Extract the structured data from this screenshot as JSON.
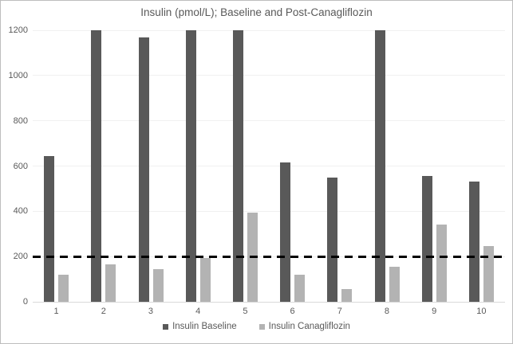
{
  "chart_data": {
    "type": "bar",
    "title": "Insulin (pmol/L); Baseline and Post-Canagliflozin",
    "categories": [
      "1",
      "2",
      "3",
      "4",
      "5",
      "6",
      "7",
      "8",
      "9",
      "10"
    ],
    "series": [
      {
        "name": "Insulin Baseline",
        "color": "#595959",
        "values": [
          645,
          1200,
          1170,
          1200,
          1200,
          615,
          550,
          1200,
          555,
          530
        ]
      },
      {
        "name": "Insulin Canagliflozin",
        "color": "#b3b3b3",
        "values": [
          120,
          165,
          145,
          195,
          395,
          120,
          55,
          155,
          340,
          245
        ]
      }
    ],
    "reference_line": {
      "value": 200,
      "style": "dashed",
      "color": "#000000"
    },
    "y_axis": {
      "min": 0,
      "max": 1200,
      "tick_interval": 200,
      "tick_labels": [
        "0",
        "200",
        "400",
        "600",
        "800",
        "1000",
        "1200"
      ]
    },
    "x_axis": {
      "label": ""
    },
    "grid": true,
    "legend_position": "bottom",
    "plot_colors": {
      "gridline": "#f0f0f0",
      "axis_line": "#d9d9d9",
      "text": "#595959",
      "background": "#ffffff"
    }
  }
}
